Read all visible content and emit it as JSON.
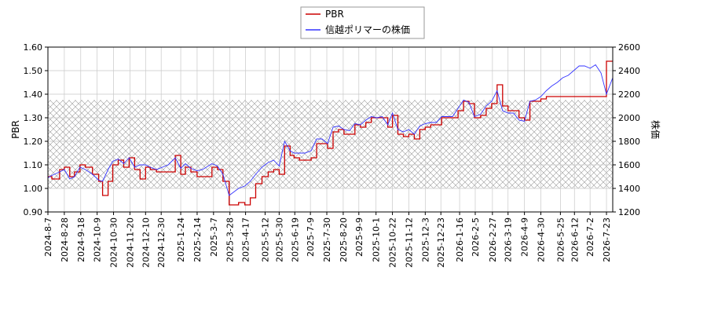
{
  "legend": {
    "items": [
      {
        "label": "PBR",
        "color": "#cc0000"
      },
      {
        "label": "信越ポリマーの株価",
        "color": "#3333ff"
      }
    ],
    "placement": "top-center"
  },
  "chart_data": {
    "type": "line",
    "title": "",
    "xlabel": "",
    "ylabel_left": "PBR",
    "ylabel_right": "株価",
    "ylim_left": [
      0.9,
      1.6
    ],
    "ylim_right": [
      1200,
      2600
    ],
    "yticks_left": [
      "0.90",
      "1.00",
      "1.10",
      "1.20",
      "1.30",
      "1.40",
      "1.50",
      "1.60"
    ],
    "yticks_right": [
      "1200",
      "1400",
      "1600",
      "1800",
      "2000",
      "2200",
      "2400",
      "2600"
    ],
    "xlim": [
      "2024-08-07",
      "2026-07-31"
    ],
    "x_tick_labels": [
      "2024-8-7",
      "2024-8-28",
      "2024-9-18",
      "2024-10-9",
      "2024-10-30",
      "2024-11-20",
      "2024-12-10",
      "2024-12-30",
      "2025-1-24",
      "2025-2-14",
      "2025-3-7",
      "2025-3-28",
      "2025-4-17",
      "2025-5-12",
      "2025-5-30",
      "2025-6-19",
      "2025-7-9",
      "2025-7-30",
      "2025-8-20",
      "2025-9-9",
      "2025-10-1",
      "2025-10-22",
      "2025-11-12",
      "2025-12-3",
      "2025-12-23",
      "2026-1-16",
      "2026-2-5",
      "2026-2-27",
      "2026-3-19",
      "2026-4-9",
      "2026-4-30",
      "2026-5-25",
      "2026-6-12",
      "2026-7-2",
      "2026-7-23"
    ],
    "x_tick_dates": [
      "2024-08-07",
      "2024-08-28",
      "2024-09-18",
      "2024-10-09",
      "2024-10-30",
      "2024-11-20",
      "2024-12-10",
      "2024-12-30",
      "2025-01-24",
      "2025-02-14",
      "2025-03-07",
      "2025-03-28",
      "2025-04-17",
      "2025-05-12",
      "2025-05-30",
      "2025-06-19",
      "2025-07-09",
      "2025-07-30",
      "2025-08-20",
      "2025-09-09",
      "2025-10-01",
      "2025-10-22",
      "2025-11-12",
      "2025-12-03",
      "2025-12-23",
      "2026-01-16",
      "2026-02-05",
      "2026-02-27",
      "2026-03-19",
      "2026-04-09",
      "2026-04-30",
      "2026-05-25",
      "2026-06-12",
      "2026-07-02",
      "2026-07-23"
    ],
    "grid": true,
    "shaded_band_left": [
      1.0,
      1.375
    ],
    "series": [
      {
        "name": "PBR",
        "axis": "left",
        "color": "#cc0000",
        "x": [
          "2024-08-07",
          "2024-08-12",
          "2024-08-22",
          "2024-08-28",
          "2024-09-04",
          "2024-09-10",
          "2024-09-17",
          "2024-09-24",
          "2024-10-03",
          "2024-10-11",
          "2024-10-16",
          "2024-10-23",
          "2024-10-29",
          "2024-11-05",
          "2024-11-12",
          "2024-11-19",
          "2024-11-26",
          "2024-12-03",
          "2024-12-10",
          "2024-12-16",
          "2024-12-24",
          "2025-01-08",
          "2025-01-17",
          "2025-01-24",
          "2025-01-30",
          "2025-02-06",
          "2025-02-14",
          "2025-02-21",
          "2025-03-05",
          "2025-03-12",
          "2025-03-19",
          "2025-03-27",
          "2025-04-02",
          "2025-04-08",
          "2025-04-16",
          "2025-04-23",
          "2025-04-30",
          "2025-05-08",
          "2025-05-16",
          "2025-05-23",
          "2025-05-30",
          "2025-06-06",
          "2025-06-13",
          "2025-06-18",
          "2025-06-25",
          "2025-07-02",
          "2025-07-10",
          "2025-07-17",
          "2025-07-24",
          "2025-07-31",
          "2025-08-07",
          "2025-08-14",
          "2025-08-21",
          "2025-08-28",
          "2025-09-04",
          "2025-09-11",
          "2025-09-18",
          "2025-09-25",
          "2025-10-02",
          "2025-10-09",
          "2025-10-16",
          "2025-10-22",
          "2025-10-29",
          "2025-11-05",
          "2025-11-12",
          "2025-11-19",
          "2025-11-26",
          "2025-12-03",
          "2025-12-10",
          "2025-12-17",
          "2025-12-24",
          "2026-01-07",
          "2026-01-14",
          "2026-01-21",
          "2026-01-28",
          "2026-02-04",
          "2026-02-12",
          "2026-02-19",
          "2026-02-26",
          "2026-03-05",
          "2026-03-12",
          "2026-03-19",
          "2026-03-26",
          "2026-04-02",
          "2026-04-09",
          "2026-04-16",
          "2026-04-23",
          "2026-04-30",
          "2026-05-07",
          "2026-05-14",
          "2026-05-21",
          "2026-05-28",
          "2026-06-04",
          "2026-06-11",
          "2026-06-18",
          "2026-06-25",
          "2026-07-02",
          "2026-07-09",
          "2026-07-16",
          "2026-07-23",
          "2026-07-31"
        ],
        "values": [
          1.05,
          1.04,
          1.08,
          1.09,
          1.05,
          1.07,
          1.1,
          1.09,
          1.06,
          1.03,
          0.97,
          1.03,
          1.1,
          1.12,
          1.09,
          1.13,
          1.08,
          1.04,
          1.09,
          1.08,
          1.07,
          1.07,
          1.14,
          1.06,
          1.09,
          1.07,
          1.05,
          1.05,
          1.09,
          1.08,
          1.03,
          0.93,
          0.93,
          0.94,
          0.93,
          0.96,
          1.02,
          1.05,
          1.07,
          1.08,
          1.06,
          1.18,
          1.14,
          1.13,
          1.12,
          1.12,
          1.13,
          1.19,
          1.19,
          1.17,
          1.24,
          1.25,
          1.23,
          1.23,
          1.27,
          1.26,
          1.28,
          1.3,
          1.3,
          1.3,
          1.26,
          1.31,
          1.23,
          1.22,
          1.23,
          1.21,
          1.25,
          1.26,
          1.27,
          1.27,
          1.3,
          1.3,
          1.33,
          1.37,
          1.36,
          1.3,
          1.31,
          1.34,
          1.36,
          1.44,
          1.35,
          1.33,
          1.33,
          1.3,
          1.29,
          1.37,
          1.37,
          1.38,
          1.39,
          1.39,
          1.39,
          1.39,
          1.39,
          1.39,
          1.39,
          1.39,
          1.39,
          1.39,
          1.39,
          1.54,
          1.54
        ]
      },
      {
        "name": "信越ポリマーの株価",
        "axis": "right",
        "color": "#3333ff",
        "x": [
          "2024-08-07",
          "2024-08-12",
          "2024-08-22",
          "2024-08-28",
          "2024-09-04",
          "2024-09-10",
          "2024-09-17",
          "2024-09-24",
          "2024-10-03",
          "2024-10-11",
          "2024-10-16",
          "2024-10-23",
          "2024-10-29",
          "2024-11-05",
          "2024-11-12",
          "2024-11-19",
          "2024-11-26",
          "2024-12-03",
          "2024-12-10",
          "2024-12-16",
          "2024-12-24",
          "2025-01-08",
          "2025-01-17",
          "2025-01-24",
          "2025-01-30",
          "2025-02-06",
          "2025-02-14",
          "2025-02-21",
          "2025-03-05",
          "2025-03-12",
          "2025-03-19",
          "2025-03-27",
          "2025-04-02",
          "2025-04-08",
          "2025-04-16",
          "2025-04-23",
          "2025-04-30",
          "2025-05-08",
          "2025-05-16",
          "2025-05-23",
          "2025-05-30",
          "2025-06-06",
          "2025-06-13",
          "2025-06-18",
          "2025-06-25",
          "2025-07-02",
          "2025-07-10",
          "2025-07-17",
          "2025-07-24",
          "2025-07-31",
          "2025-08-07",
          "2025-08-14",
          "2025-08-21",
          "2025-08-28",
          "2025-09-04",
          "2025-09-11",
          "2025-09-18",
          "2025-09-25",
          "2025-10-02",
          "2025-10-09",
          "2025-10-16",
          "2025-10-22",
          "2025-10-29",
          "2025-11-05",
          "2025-11-12",
          "2025-11-19",
          "2025-11-26",
          "2025-12-03",
          "2025-12-10",
          "2025-12-17",
          "2025-12-24",
          "2026-01-07",
          "2026-01-14",
          "2026-01-21",
          "2026-01-28",
          "2026-02-04",
          "2026-02-12",
          "2026-02-19",
          "2026-02-26",
          "2026-03-05",
          "2026-03-12",
          "2026-03-19",
          "2026-03-26",
          "2026-04-02",
          "2026-04-09",
          "2026-04-16",
          "2026-04-23",
          "2026-04-30",
          "2026-05-07",
          "2026-05-14",
          "2026-05-21",
          "2026-05-28",
          "2026-06-04",
          "2026-06-11",
          "2026-06-18",
          "2026-06-25",
          "2026-07-02",
          "2026-07-09",
          "2026-07-16",
          "2026-07-23",
          "2026-07-31"
        ],
        "values": [
          1490,
          1510,
          1540,
          1560,
          1480,
          1500,
          1580,
          1560,
          1520,
          1470,
          1460,
          1560,
          1630,
          1650,
          1610,
          1660,
          1580,
          1600,
          1600,
          1580,
          1560,
          1600,
          1660,
          1570,
          1610,
          1570,
          1550,
          1560,
          1610,
          1590,
          1520,
          1340,
          1370,
          1400,
          1420,
          1460,
          1520,
          1580,
          1620,
          1640,
          1590,
          1800,
          1720,
          1700,
          1700,
          1700,
          1720,
          1820,
          1820,
          1780,
          1920,
          1930,
          1900,
          1890,
          1950,
          1940,
          1980,
          2010,
          2000,
          2010,
          1940,
          2040,
          1900,
          1880,
          1900,
          1860,
          1930,
          1950,
          1960,
          1960,
          2010,
          2010,
          2080,
          2150,
          2130,
          2010,
          2030,
          2100,
          2140,
          2230,
          2060,
          2040,
          2040,
          1980,
          1970,
          2140,
          2150,
          2180,
          2230,
          2270,
          2300,
          2340,
          2360,
          2400,
          2440,
          2440,
          2420,
          2450,
          2380,
          2200,
          2340
        ]
      }
    ]
  }
}
